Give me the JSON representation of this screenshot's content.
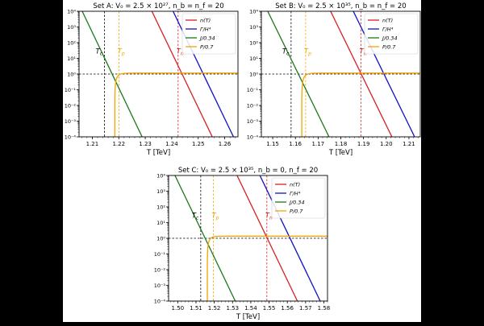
{
  "chart_data": [
    {
      "type": "line",
      "title": "Set A: V₀ = 2.5 × 10²⁷, n_b = n_f = 20",
      "xlabel": "T [TeV]",
      "ylabel": "",
      "xlim": [
        1.205,
        1.265
      ],
      "ylim": [
        0.0001,
        10000
      ],
      "y_scale": "log",
      "x_ticks": [
        1.21,
        1.22,
        1.23,
        1.24,
        1.25,
        1.26
      ],
      "x_tick_labels": [
        "1.21",
        "1.22",
        "1.23",
        "1.24",
        "1.25",
        "1.26"
      ],
      "y_ticks": [
        -4,
        -3,
        -2,
        -1,
        0,
        1,
        2,
        3,
        4
      ],
      "y_tick_labels": [
        "10⁻⁴",
        "10⁻³",
        "10⁻²",
        "10⁻¹",
        "10⁰",
        "10¹",
        "10²",
        "10³",
        "10⁴"
      ],
      "legend_position": "top-right",
      "series": [
        {
          "name": "n(T)",
          "color": "#d62020",
          "kind": "line",
          "x": [
            1.2325,
            1.2553
          ],
          "y": [
            10000,
            0.0001
          ]
        },
        {
          "name": "Γ/H⁴",
          "color": "#1010c8",
          "kind": "line",
          "x": [
            1.2405,
            1.2633
          ],
          "y": [
            10000,
            0.0001
          ]
        },
        {
          "name": "J/0.34",
          "color": "#1a7a1a",
          "kind": "line",
          "x": [
            1.2062,
            1.2288
          ],
          "y": [
            10000,
            0.0001
          ]
        },
        {
          "name": "P/0.7",
          "color": "#f0a500",
          "kind": "saturating",
          "x_start": 1.2185,
          "x_scale": 0.0011,
          "y_max": 1.15,
          "x_end": 1.265
        }
      ],
      "markers": [
        {
          "label": "T_c",
          "x": 1.2146,
          "color": "#000000",
          "label_y": 20
        },
        {
          "label": "T_p",
          "x": 1.2201,
          "color": "#f0a500",
          "label_y": 20
        },
        {
          "label": "T_n",
          "x": 1.2424,
          "color": "#d62020",
          "label_y": 20
        }
      ],
      "h_ref": {
        "y": 1,
        "color": "#000000"
      }
    },
    {
      "type": "line",
      "title": "Set B: V₀ = 2.5 × 10³⁵, n_b = n_f = 20",
      "xlabel": "T [TeV]",
      "ylabel": "",
      "xlim": [
        1.145,
        1.215
      ],
      "ylim": [
        0.0001,
        10000
      ],
      "y_scale": "log",
      "x_ticks": [
        1.15,
        1.16,
        1.17,
        1.18,
        1.19,
        1.2,
        1.21
      ],
      "x_tick_labels": [
        "1.15",
        "1.16",
        "1.17",
        "1.18",
        "1.19",
        "1.20",
        "1.21"
      ],
      "y_ticks": [
        -4,
        -3,
        -2,
        -1,
        0,
        1,
        2,
        3,
        4
      ],
      "y_tick_labels": [
        "10⁻⁴",
        "10⁻³",
        "10⁻²",
        "10⁻¹",
        "10⁰",
        "10¹",
        "10²",
        "10³",
        "10⁴"
      ],
      "legend_position": "top-right",
      "series": [
        {
          "name": "n(T)",
          "color": "#d62020",
          "kind": "line",
          "x": [
            1.1755,
            1.2025
          ],
          "y": [
            10000,
            0.0001
          ]
        },
        {
          "name": "Γ/H⁴",
          "color": "#1010c8",
          "kind": "line",
          "x": [
            1.1855,
            1.2125
          ],
          "y": [
            10000,
            0.0001
          ]
        },
        {
          "name": "J/0.34",
          "color": "#1a7a1a",
          "kind": "line",
          "x": [
            1.1478,
            1.1748
          ],
          "y": [
            10000,
            0.0001
          ]
        },
        {
          "name": "P/0.7",
          "color": "#f0a500",
          "kind": "saturating",
          "x_start": 1.1628,
          "x_scale": 0.0013,
          "y_max": 1.15,
          "x_end": 1.215
        }
      ],
      "markers": [
        {
          "label": "T_c",
          "x": 1.1581,
          "color": "#000000",
          "label_y": 20
        },
        {
          "label": "T_p",
          "x": 1.1645,
          "color": "#f0a500",
          "label_y": 20
        },
        {
          "label": "T_n",
          "x": 1.1889,
          "color": "#d62020",
          "label_y": 20
        }
      ],
      "h_ref": {
        "y": 1,
        "color": "#000000"
      }
    },
    {
      "type": "line",
      "title": "Set C: V₀ = 2.5 × 10³⁵, n_b = 0, n_f = 20",
      "xlabel": "T [TeV]",
      "ylabel": "",
      "xlim": [
        1.495,
        1.582
      ],
      "ylim": [
        0.0001,
        10000
      ],
      "y_scale": "log",
      "x_ticks": [
        1.5,
        1.51,
        1.52,
        1.53,
        1.54,
        1.55,
        1.56,
        1.57,
        1.58
      ],
      "x_tick_labels": [
        "1.50",
        "1.51",
        "1.52",
        "1.53",
        "1.54",
        "1.55",
        "1.56",
        "1.57",
        "1.58"
      ],
      "y_ticks": [
        -4,
        -3,
        -2,
        -1,
        0,
        1,
        2,
        3,
        4
      ],
      "y_tick_labels": [
        "10⁻⁴",
        "10⁻³",
        "10⁻²",
        "10⁻¹",
        "10⁰",
        "10¹",
        "10²",
        "10³",
        "10⁴"
      ],
      "legend_position": "top-right",
      "series": [
        {
          "name": "n(T)",
          "color": "#d62020",
          "kind": "line",
          "x": [
            1.5325,
            1.5655
          ],
          "y": [
            10000,
            0.0001
          ]
        },
        {
          "name": "Γ/H⁴",
          "color": "#1010c8",
          "kind": "line",
          "x": [
            1.545,
            1.578
          ],
          "y": [
            10000,
            0.0001
          ]
        },
        {
          "name": "J/0.34",
          "color": "#1a7a1a",
          "kind": "line",
          "x": [
            1.4985,
            1.5315
          ],
          "y": [
            10000,
            0.0001
          ]
        },
        {
          "name": "P/0.7",
          "color": "#f0a500",
          "kind": "saturating",
          "x_start": 1.5162,
          "x_scale": 0.0014,
          "y_max": 1.35,
          "x_end": 1.582
        }
      ],
      "markers": [
        {
          "label": "T_c",
          "x": 1.5126,
          "color": "#000000",
          "label_y": 20
        },
        {
          "label": "T_p",
          "x": 1.5195,
          "color": "#f0a500",
          "label_y": 20
        },
        {
          "label": "T_n",
          "x": 1.5488,
          "color": "#d62020",
          "label_y": 20
        }
      ],
      "h_ref": {
        "y": 1,
        "color": "#000000"
      }
    }
  ]
}
